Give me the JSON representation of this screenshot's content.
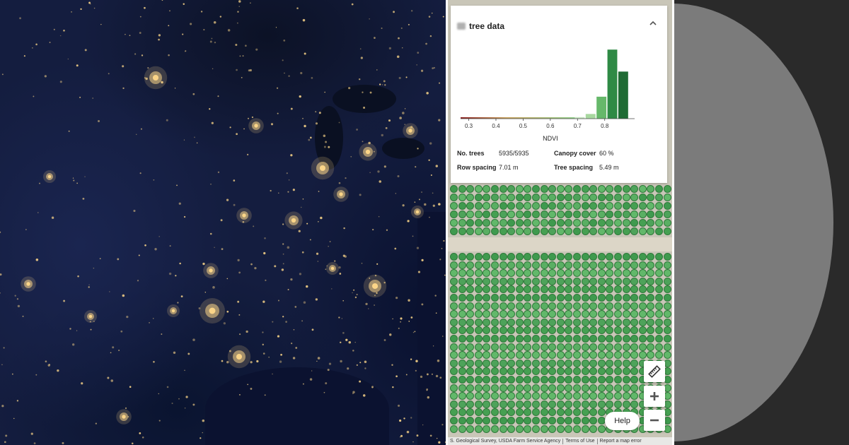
{
  "panel": {
    "title": "tree data",
    "collapse_icon": "chevron-up-icon"
  },
  "chart_data": {
    "type": "bar",
    "title": "",
    "xlabel": "NDVI",
    "ylabel": "",
    "x_ticks": [
      "0.3",
      "0.4",
      "0.5",
      "0.6",
      "0.7",
      "0.8"
    ],
    "xlim": [
      0.27,
      0.91
    ],
    "bins": [
      {
        "x": 0.71,
        "value": 2
      },
      {
        "x": 0.75,
        "value": 6
      },
      {
        "x": 0.79,
        "value": 28
      },
      {
        "x": 0.83,
        "value": 88
      },
      {
        "x": 0.87,
        "value": 60
      }
    ],
    "colors": [
      "#8b1a1a",
      "#c8a05a",
      "#a8d8a0",
      "#66b86a",
      "#2f8a45",
      "#1f6b34"
    ]
  },
  "stats": {
    "trees_label": "No. trees",
    "trees_value": "5935/5935",
    "canopy_label": "Canopy cover",
    "canopy_value": "60 %",
    "row_label": "Row spacing",
    "row_value": "7.01 m",
    "tree_label": "Tree spacing",
    "tree_value": "5.49 m"
  },
  "controls": {
    "ruler_icon": "ruler-icon",
    "zoom_in_icon": "plus-icon",
    "zoom_out_icon": "minus-icon",
    "help_label": "Help"
  },
  "attribution": {
    "source": "S. Geological Survey, USDA Farm Service Agency",
    "terms": "Terms of Use",
    "report": "Report a map error"
  }
}
